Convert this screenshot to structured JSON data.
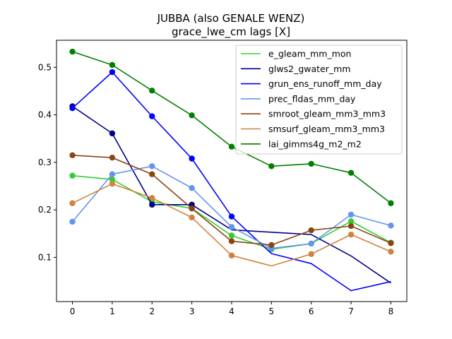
{
  "chart_data": {
    "type": "line",
    "title": "JUBBA (also GENALE WENZ)",
    "subtitle": "grace_lwe_cm lags [X]",
    "xlabel": "",
    "ylabel": "",
    "x": [
      0,
      1,
      2,
      3,
      4,
      5,
      6,
      7,
      8
    ],
    "xlim": [
      -0.4,
      8.4
    ],
    "ylim": [
      0.007,
      0.557
    ],
    "xticks": [
      "0",
      "1",
      "2",
      "3",
      "4",
      "5",
      "6",
      "7",
      "8"
    ],
    "yticks": [
      "0.1",
      "0.2",
      "0.3",
      "0.4",
      "0.5"
    ],
    "ytick_values": [
      0.1,
      0.2,
      0.3,
      0.4,
      0.5
    ],
    "grid": false,
    "legend_position": "top-right",
    "series": [
      {
        "name": "e_gleam_mm_mon",
        "color": "#32cd32",
        "marker_x": [
          0,
          1,
          2,
          3,
          4,
          5,
          6,
          7,
          8
        ],
        "values": [
          0.272,
          0.264,
          0.217,
          0.203,
          0.146,
          0.117,
          0.129,
          0.176,
          0.131
        ]
      },
      {
        "name": "glws2_gwater_mm",
        "color": "#00008b",
        "marker_x": [
          0,
          1,
          2,
          3
        ],
        "values": [
          0.418,
          0.361,
          0.211,
          0.211,
          0.158,
          0.153,
          0.148,
          0.103,
          0.046
        ]
      },
      {
        "name": "grun_ens_runoff_mm_day",
        "color": "#0000ff",
        "marker_x": [
          0,
          1,
          2,
          3,
          4
        ],
        "values": [
          0.414,
          0.49,
          0.397,
          0.308,
          0.186,
          0.108,
          0.087,
          0.03,
          0.049
        ]
      },
      {
        "name": "prec_fldas_mm_day",
        "color": "#6495ed",
        "marker_x": [
          0,
          1,
          2,
          3,
          4,
          5,
          6,
          7,
          8
        ],
        "values": [
          0.175,
          0.275,
          0.292,
          0.246,
          0.164,
          0.119,
          0.129,
          0.19,
          0.167
        ]
      },
      {
        "name": "smroot_gleam_mm3_mm3",
        "color": "#8b4513",
        "marker_x": [
          0,
          1,
          2,
          3,
          4,
          5,
          6,
          7,
          8
        ],
        "values": [
          0.315,
          0.31,
          0.275,
          0.203,
          0.134,
          0.126,
          0.157,
          0.166,
          0.13
        ]
      },
      {
        "name": "smsurf_gleam_mm3_mm3",
        "color": "#cd853f",
        "marker_x": [
          0,
          1,
          2,
          3,
          4,
          6,
          7,
          8
        ],
        "values": [
          0.214,
          0.255,
          0.225,
          0.184,
          0.104,
          0.082,
          0.107,
          0.148,
          0.112
        ]
      },
      {
        "name": "lai_gimms4g_m2_m2",
        "color": "#008000",
        "marker_x": [
          0,
          1,
          2,
          3,
          4,
          5,
          6,
          7,
          8
        ],
        "values": [
          0.533,
          0.505,
          0.451,
          0.399,
          0.333,
          0.292,
          0.297,
          0.278,
          0.214
        ]
      }
    ]
  }
}
